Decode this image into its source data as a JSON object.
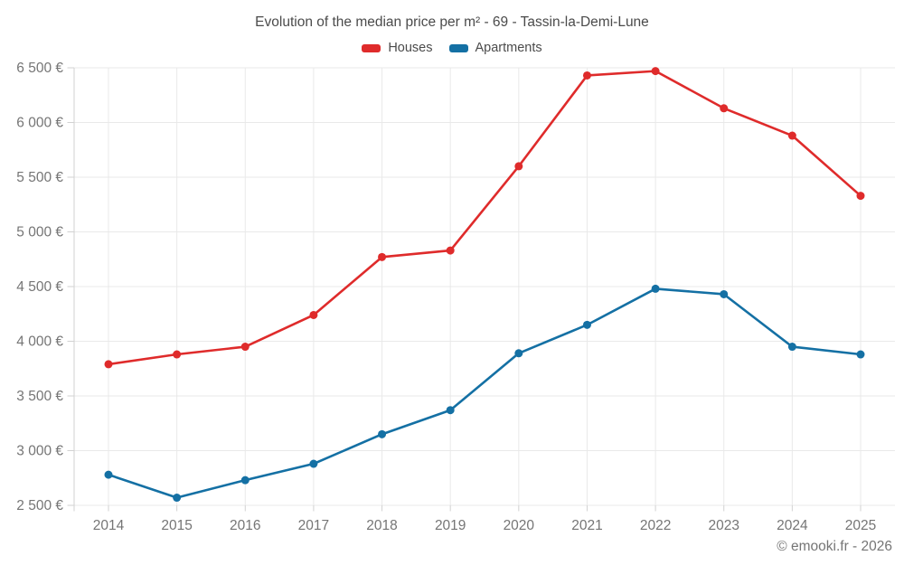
{
  "header": {
    "title": "Evolution of the median price per m² - 69 - Tassin-la-Demi-Lune"
  },
  "legend": {
    "items": [
      {
        "label": "Houses",
        "color": "#df2b2b"
      },
      {
        "label": "Apartments",
        "color": "#1470a4"
      }
    ]
  },
  "footer": {
    "credit": "© emooki.fr - 2026"
  },
  "colors": {
    "houses": "#df2b2b",
    "apartments": "#1470a4",
    "gridline": "#e9e9e9",
    "axis": "#d2d2d2",
    "title_text": "#4b4b4b",
    "tick_text": "#757575"
  },
  "chart_data": {
    "type": "line",
    "title": "Evolution of the median price per m² - 69 - Tassin-la-Demi-Lune",
    "xlabel": "",
    "ylabel": "",
    "x": [
      2014,
      2015,
      2016,
      2017,
      2018,
      2019,
      2020,
      2021,
      2022,
      2023,
      2024,
      2025
    ],
    "x_tick_labels": [
      "2014",
      "2015",
      "2016",
      "2017",
      "2018",
      "2019",
      "2020",
      "2021",
      "2022",
      "2023",
      "2024",
      "2025"
    ],
    "series": [
      {
        "name": "Houses",
        "color": "#df2b2b",
        "values": [
          3790,
          3880,
          3950,
          4240,
          4770,
          4830,
          5600,
          6430,
          6470,
          6130,
          5880,
          5330
        ]
      },
      {
        "name": "Apartments",
        "color": "#1470a4",
        "values": [
          2780,
          2570,
          2730,
          2880,
          3150,
          3370,
          3890,
          4150,
          4480,
          4430,
          3950,
          3880
        ]
      }
    ],
    "ylim": [
      2500,
      6500
    ],
    "ytick_step": 500,
    "y_tick_labels": [
      "2 500 €",
      "3 000 €",
      "3 500 €",
      "4 000 €",
      "4 500 €",
      "5 000 €",
      "5 500 €",
      "6 000 €",
      "6 500 €"
    ],
    "currency_suffix": " €",
    "grid": true,
    "legend_position": "top",
    "marker_radius": 4.5,
    "line_width": 2.6
  }
}
